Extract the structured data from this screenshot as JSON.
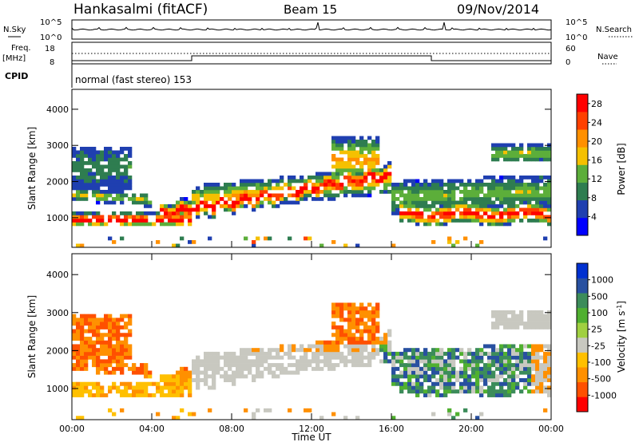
{
  "header": {
    "station": "Hankasalmi (fitACF)",
    "beam": "Beam 15",
    "date": "09/Nov/2014"
  },
  "summary": {
    "nsky_label": "N.Sky",
    "nsearch_label": "N.Search",
    "noise_ticks": [
      "10^5",
      "10^0"
    ],
    "freq_label": "Freq.",
    "freq_unit": "[MHz]",
    "freq_ticks": [
      "18",
      "8"
    ],
    "nave_label": "Nave",
    "nave_ticks": [
      "60",
      "0"
    ],
    "cpid_label": "CPID",
    "cpid_text": "normal (fast stereo) 153"
  },
  "colors": {
    "power_scale": [
      "#0000ff",
      "#1f3fb0",
      "#2e7d50",
      "#5cae3a",
      "#f5c000",
      "#ff9000",
      "#ff4000",
      "#ff0000"
    ],
    "velocity_scale": [
      "#ff0000",
      "#ff5000",
      "#ff9000",
      "#ffc000",
      "#c8c8c0",
      "#a0d040",
      "#50b030",
      "#3c8c5a",
      "#2850a0",
      "#0030d0"
    ],
    "ground_scatter": "#c8c8c0"
  },
  "chart_data": [
    {
      "type": "heatmap",
      "name": "power",
      "ylabel": "Slant Range [km]",
      "xlabel": "",
      "x_range_hours": [
        0,
        24
      ],
      "ylim": [
        180,
        4550
      ],
      "y_ticks": [
        "1000",
        "2000",
        "3000",
        "4000"
      ],
      "colorbar_label": "Power [dB]",
      "colorbar_ticks": [
        "4",
        "8",
        "12",
        "16",
        "20",
        "24",
        "28"
      ],
      "colorbar_range": [
        0,
        30
      ]
    },
    {
      "type": "heatmap",
      "name": "velocity",
      "ylabel": "Slant Range [km]",
      "xlabel": "Time UT",
      "x_ticks": [
        "00:00",
        "04:00",
        "08:00",
        "12:00",
        "16:00",
        "20:00",
        "00:00"
      ],
      "ylim": [
        180,
        4550
      ],
      "y_ticks": [
        "1000",
        "2000",
        "3000",
        "4000"
      ],
      "colorbar_label": "Velocity [m s",
      "colorbar_label_sup": "-1",
      "colorbar_label_end": "]",
      "colorbar_ticks": [
        "1000",
        "500",
        "100",
        "25",
        "-25",
        "-100",
        "-500",
        "-1000"
      ]
    }
  ]
}
